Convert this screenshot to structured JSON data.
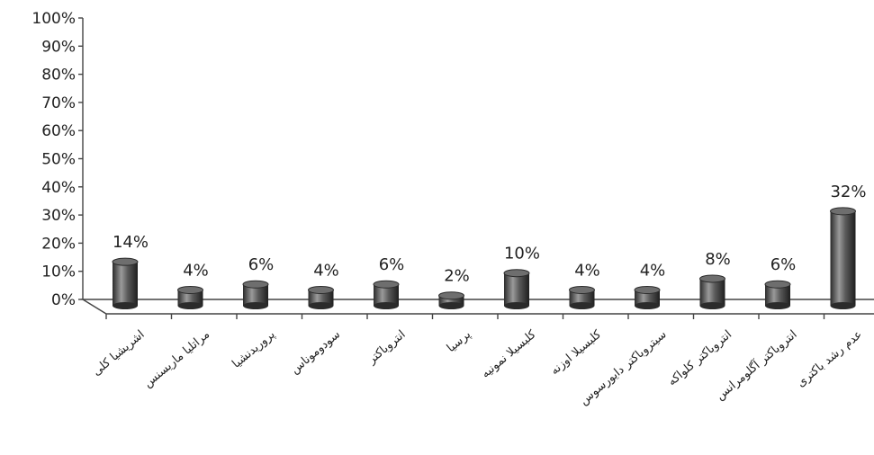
{
  "chart_data": {
    "type": "bar",
    "title": "",
    "xlabel": "",
    "ylabel": "",
    "ylim": [
      0,
      100
    ],
    "y_ticks": [
      "0%",
      "10%",
      "20%",
      "30%",
      "40%",
      "50%",
      "60%",
      "70%",
      "80%",
      "90%",
      "100%"
    ],
    "categories": [
      "اشریشیا کلی",
      "مراتلیا ماریسنس",
      "پروریدنشیا",
      "سودوموناس",
      "انتروباکتر",
      "پرسیا",
      "کلبسیلا نمونیه",
      "کلبسیلا اوزنه",
      "سیتروباکتر دایورسوس",
      "انتروباکتر کلواکه",
      "انتروباکتر آگلومرانس",
      "عدم رشد باکتری"
    ],
    "values": [
      14,
      4,
      6,
      4,
      6,
      2,
      10,
      4,
      4,
      8,
      6,
      32
    ],
    "data_labels": [
      "14%",
      "4%",
      "6%",
      "4%",
      "6%",
      "2%",
      "10%",
      "4%",
      "4%",
      "8%",
      "6%",
      "32%"
    ],
    "colors": {
      "bar_dark": "#2b2b2b",
      "bar_light": "#9a9a9a",
      "axis": "#444444"
    },
    "grid": false,
    "legend": "none"
  }
}
